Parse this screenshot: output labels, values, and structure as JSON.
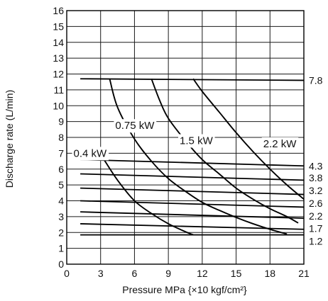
{
  "chart_data": {
    "type": "line",
    "title": "",
    "xlabel": "Pressure MPa {×10 kgf/cm²}",
    "ylabel": "Discharge rate (L/min)",
    "xlim": [
      0,
      21
    ],
    "ylim": [
      0,
      16
    ],
    "x_ticks": [
      "0",
      "3",
      "6",
      "9",
      "12",
      "15",
      "18",
      "21"
    ],
    "y_ticks": [
      "0",
      "1",
      "2",
      "3",
      "4",
      "5",
      "6",
      "7",
      "8",
      "9",
      "10",
      "11",
      "12",
      "13",
      "14",
      "15",
      "16"
    ],
    "grid": true,
    "flow_lines": [
      {
        "label": "7.8",
        "x": [
          1.2,
          21
        ],
        "y": [
          11.7,
          11.6
        ]
      },
      {
        "label": "4.3",
        "x": [
          1.2,
          21
        ],
        "y": [
          6.6,
          6.2
        ]
      },
      {
        "label": "3.8",
        "x": [
          1.2,
          21
        ],
        "y": [
          5.7,
          5.3
        ]
      },
      {
        "label": "3.2",
        "x": [
          1.2,
          21
        ],
        "y": [
          4.8,
          4.4
        ]
      },
      {
        "label": "2.6",
        "x": [
          1.2,
          21
        ],
        "y": [
          4.0,
          3.6
        ]
      },
      {
        "label": "2.2",
        "x": [
          1.2,
          21
        ],
        "y": [
          3.3,
          2.9
        ]
      },
      {
        "label": "1.7",
        "x": [
          1.2,
          21
        ],
        "y": [
          2.55,
          2.2
        ]
      },
      {
        "label": "1.2",
        "x": [
          1.2,
          21
        ],
        "y": [
          1.85,
          1.85
        ]
      }
    ],
    "power_curves": [
      {
        "label": "0.4 kW",
        "x": [
          3.3,
          4.5,
          6,
          7.5,
          9,
          10.5,
          11.2
        ],
        "y": [
          6.6,
          5.3,
          4.0,
          3.2,
          2.55,
          2.05,
          1.85
        ]
      },
      {
        "label": "0.75 kW",
        "x": [
          3.8,
          4.5,
          6,
          7.5,
          9,
          10.5,
          12,
          13.5,
          15,
          16.5,
          18,
          19.5
        ],
        "y": [
          11.7,
          9.9,
          7.9,
          6.5,
          5.4,
          4.6,
          3.9,
          3.4,
          2.95,
          2.55,
          2.2,
          1.9
        ]
      },
      {
        "label": "1.5 kW",
        "x": [
          7.5,
          8.25,
          9,
          10.5,
          12,
          13.5,
          15,
          16.5,
          18,
          19.5,
          20.5
        ],
        "y": [
          11.7,
          10.3,
          9.2,
          7.8,
          6.6,
          5.7,
          4.8,
          4.1,
          3.5,
          3.0,
          2.6
        ]
      },
      {
        "label": "2.2 kW",
        "x": [
          11.2,
          12,
          13.5,
          15,
          16.5,
          18,
          19.5,
          21
        ],
        "y": [
          11.7,
          10.9,
          9.6,
          8.3,
          7.1,
          6.0,
          5.0,
          4.1
        ]
      }
    ]
  }
}
